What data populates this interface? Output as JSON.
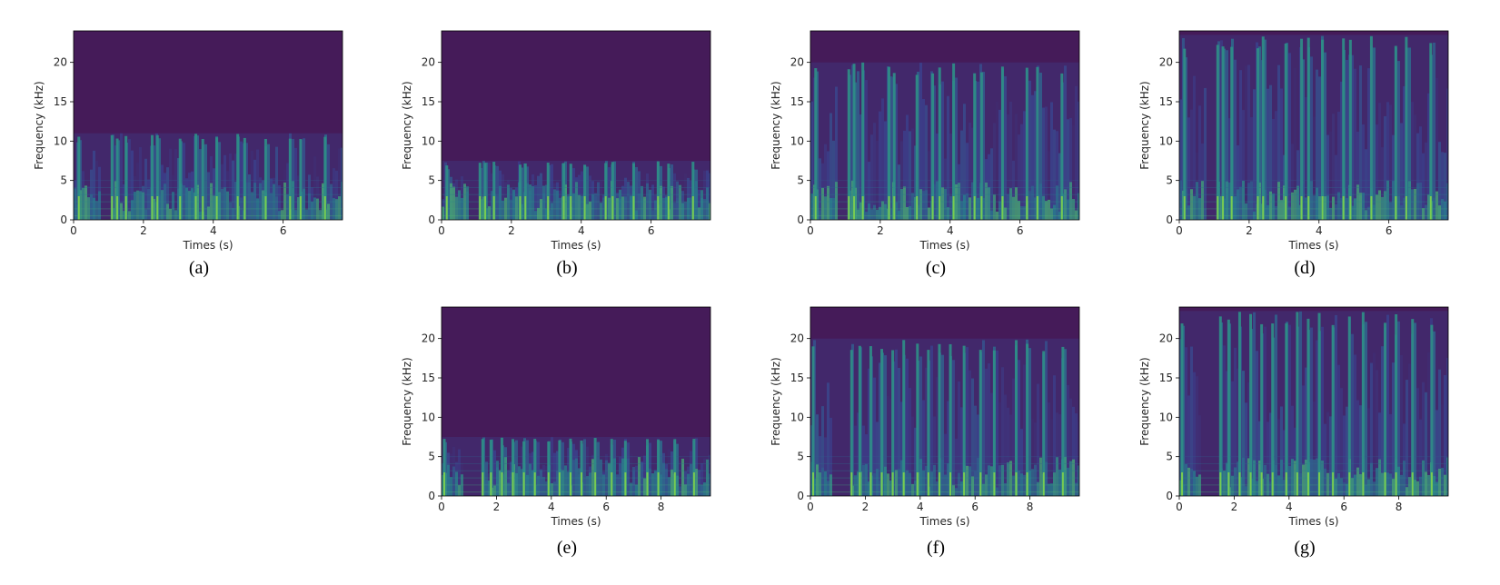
{
  "chart_data": [
    {
      "type": "heatmap",
      "caption": "(a)",
      "xlabel": "Times (s)",
      "ylabel": "Frequency (kHz)",
      "xlim": [
        0,
        7.7
      ],
      "ylim": [
        0,
        24
      ],
      "xticks": [
        0,
        2,
        4,
        6
      ],
      "yticks": [
        0,
        5,
        10,
        15,
        20
      ],
      "content_cutoff_khz": 11,
      "onsets_s": [
        0.15,
        1.1,
        1.25,
        1.5,
        2.25,
        2.4,
        3.05,
        3.5,
        3.7,
        4.1,
        4.7,
        4.9,
        5.5,
        6.2,
        6.5,
        7.2
      ]
    },
    {
      "type": "heatmap",
      "caption": "(b)",
      "xlabel": "Times (s)",
      "ylabel": "Frequency (kHz)",
      "xlim": [
        0,
        7.7
      ],
      "ylim": [
        0,
        24
      ],
      "xticks": [
        0,
        2,
        4,
        6
      ],
      "yticks": [
        0,
        5,
        10,
        15,
        20
      ],
      "content_cutoff_khz": 7.5,
      "onsets_s": [
        0.15,
        1.1,
        1.25,
        1.5,
        2.25,
        2.4,
        3.05,
        3.5,
        3.7,
        4.1,
        4.7,
        4.9,
        5.5,
        6.2,
        6.5,
        7.2
      ]
    },
    {
      "type": "heatmap",
      "caption": "(c)",
      "xlabel": "Times (s)",
      "ylabel": "Frequency (kHz)",
      "xlim": [
        0,
        7.7
      ],
      "ylim": [
        0,
        24
      ],
      "xticks": [
        0,
        2,
        4,
        6
      ],
      "yticks": [
        0,
        5,
        10,
        15,
        20
      ],
      "content_cutoff_khz": 20,
      "onsets_s": [
        0.15,
        1.1,
        1.25,
        1.5,
        2.25,
        2.4,
        3.05,
        3.5,
        3.7,
        4.1,
        4.7,
        4.9,
        5.5,
        6.2,
        6.5,
        7.2
      ]
    },
    {
      "type": "heatmap",
      "caption": "(d)",
      "xlabel": "Times (s)",
      "ylabel": "Frequency (kHz)",
      "xlim": [
        0,
        7.7
      ],
      "ylim": [
        0,
        24
      ],
      "xticks": [
        0,
        2,
        4,
        6
      ],
      "yticks": [
        0,
        5,
        10,
        15,
        20
      ],
      "content_cutoff_khz": 23.5,
      "onsets_s": [
        0.15,
        1.1,
        1.25,
        1.5,
        2.25,
        2.4,
        3.05,
        3.5,
        3.7,
        4.1,
        4.7,
        4.9,
        5.5,
        6.2,
        6.5,
        7.2
      ]
    },
    {
      "type": "heatmap",
      "caption": "(e)",
      "xlabel": "Times (s)",
      "ylabel": "Frequency (kHz)",
      "xlim": [
        0,
        9.8
      ],
      "ylim": [
        0,
        24
      ],
      "xticks": [
        0,
        2,
        4,
        6,
        8
      ],
      "yticks": [
        0,
        5,
        10,
        15,
        20
      ],
      "content_cutoff_khz": 7.5,
      "onsets_s": [
        0.1,
        1.5,
        1.8,
        2.2,
        2.6,
        3.0,
        3.4,
        3.9,
        4.3,
        4.7,
        5.1,
        5.6,
        6.2,
        6.7,
        7.5,
        7.9,
        8.5,
        9.2
      ]
    },
    {
      "type": "heatmap",
      "caption": "(f)",
      "xlabel": "Times (s)",
      "ylabel": "Frequency (kHz)",
      "xlim": [
        0,
        9.8
      ],
      "ylim": [
        0,
        24
      ],
      "xticks": [
        0,
        2,
        4,
        6,
        8
      ],
      "yticks": [
        0,
        5,
        10,
        15,
        20
      ],
      "content_cutoff_khz": 20,
      "onsets_s": [
        0.1,
        1.5,
        1.8,
        2.2,
        2.6,
        3.0,
        3.4,
        3.9,
        4.3,
        4.7,
        5.1,
        5.6,
        6.2,
        6.7,
        7.5,
        7.9,
        8.5,
        9.2
      ]
    },
    {
      "type": "heatmap",
      "caption": "(g)",
      "xlabel": "Times (s)",
      "ylabel": "Frequency (kHz)",
      "xlim": [
        0,
        9.8
      ],
      "ylim": [
        0,
        24
      ],
      "xticks": [
        0,
        2,
        4,
        6,
        8
      ],
      "yticks": [
        0,
        5,
        10,
        15,
        20
      ],
      "content_cutoff_khz": 23.5,
      "onsets_s": [
        0.1,
        1.5,
        1.8,
        2.2,
        2.6,
        3.0,
        3.4,
        3.9,
        4.3,
        4.7,
        5.1,
        5.6,
        6.2,
        6.7,
        7.5,
        7.9,
        8.5,
        9.2
      ]
    }
  ],
  "colors": {
    "background": "#451b59",
    "low": "#3b3f8c",
    "mid": "#26838e",
    "high": "#5ec962",
    "peak": "#a5db36"
  }
}
